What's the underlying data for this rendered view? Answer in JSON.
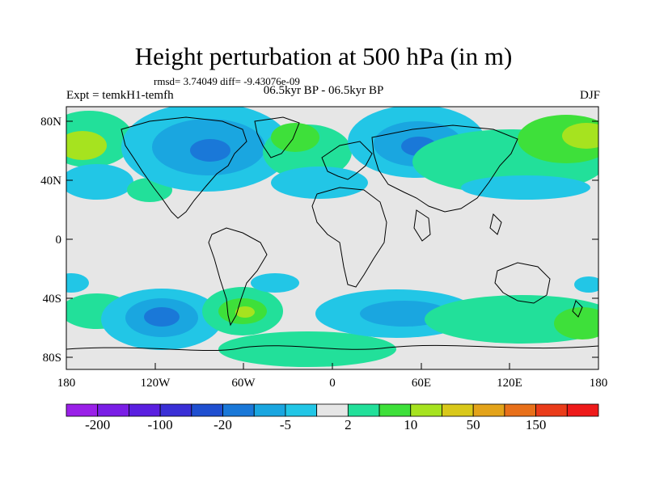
{
  "title": "Height perturbation at 500 hPa (in m)",
  "stats": "rmsd= 3.74049 diff= -9.43076e-09",
  "experiment": "Expt = temkH1-temfh",
  "period": "06.5kyr BP - 06.5kyr BP",
  "season": "DJF",
  "map": {
    "lat_labels": [
      "80N",
      "40N",
      "0",
      "40S",
      "80S"
    ],
    "lon_labels": [
      "180",
      "120W",
      "60W",
      "0",
      "60E",
      "120E",
      "180"
    ]
  },
  "colorbar": {
    "colors": [
      "#9a20e8",
      "#7a1ee6",
      "#5a1fe0",
      "#3a2fd6",
      "#1f4fd0",
      "#1a78d8",
      "#1aa6e0",
      "#22c6e6",
      "#e6e6e6",
      "#22e09a",
      "#3ee03a",
      "#a6e31f",
      "#d9c81a",
      "#e3a31a",
      "#e8701a",
      "#ea3c1a",
      "#ee1a1a"
    ],
    "labels": [
      "-200",
      "-100",
      "-20",
      "-5",
      "2",
      "10",
      "50",
      "150"
    ]
  }
}
